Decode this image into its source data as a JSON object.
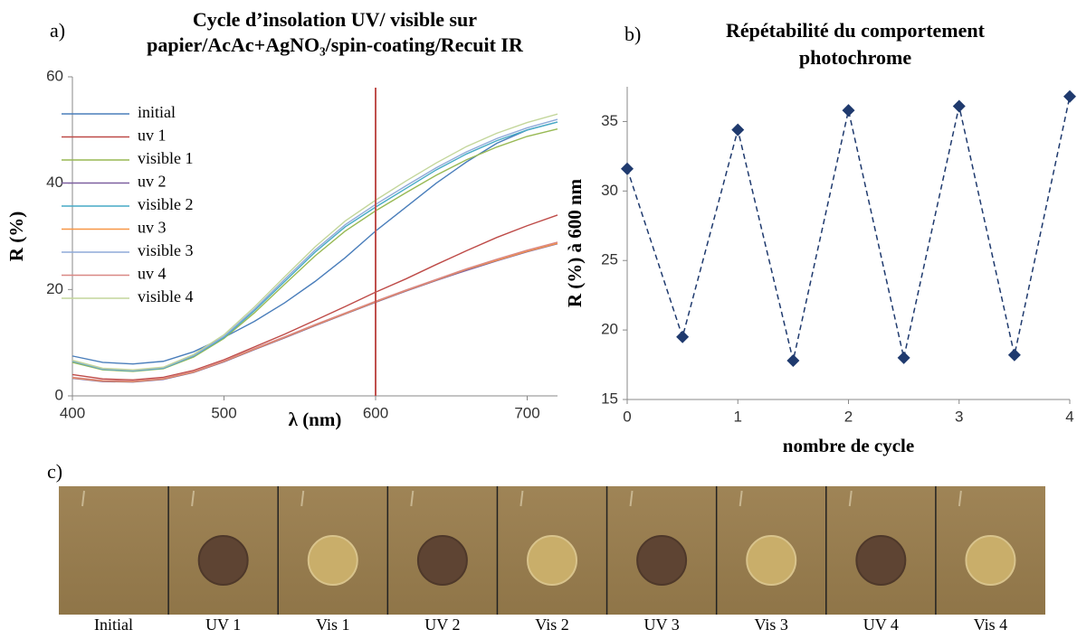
{
  "panel_labels": [
    "a)",
    "b)",
    "c)"
  ],
  "chart_data": [
    {
      "type": "line",
      "title": [
        "Cycle d’insolation UV/ visible sur",
        "papier/AcAc+AgNO₃/spin-coating/Recuit IR"
      ],
      "x_label": "λ (nm)",
      "y_label": "R (%)",
      "x": [
        400,
        420,
        440,
        460,
        480,
        500,
        520,
        540,
        560,
        580,
        600,
        620,
        640,
        660,
        680,
        700,
        720
      ],
      "series": [
        {
          "name": "initial",
          "color": "#4a7ebb",
          "values": [
            7.5,
            6.3,
            6.0,
            6.5,
            8.3,
            11,
            14,
            17.5,
            21.5,
            26,
            31,
            35.5,
            40,
            44,
            47.5,
            50,
            51.5
          ]
        },
        {
          "name": "uv 1",
          "color": "#be4b48",
          "values": [
            4,
            3.2,
            3.0,
            3.5,
            4.8,
            6.8,
            9.2,
            11.6,
            14.2,
            16.8,
            19.5,
            22,
            24.7,
            27.3,
            29.8,
            32,
            34
          ]
        },
        {
          "name": "visible 1",
          "color": "#98b954",
          "values": [
            6.3,
            4.9,
            4.6,
            5.1,
            7.3,
            10.8,
            15.6,
            21,
            26.3,
            31,
            34.8,
            38.2,
            41.5,
            44.4,
            46.8,
            48.8,
            50.2
          ]
        },
        {
          "name": "uv 2",
          "color": "#7d60a0",
          "values": [
            3.3,
            2.7,
            2.6,
            3.1,
            4.4,
            6.4,
            8.7,
            10.9,
            13.2,
            15.4,
            17.6,
            19.7,
            21.7,
            23.6,
            25.4,
            27.1,
            28.6
          ]
        },
        {
          "name": "visible 2",
          "color": "#46aac5",
          "values": [
            6.5,
            5.0,
            4.7,
            5.2,
            7.5,
            11,
            16,
            21.5,
            27,
            31.8,
            35.5,
            39,
            42.5,
            45.5,
            48,
            50,
            51.5
          ]
        },
        {
          "name": "uv 3",
          "color": "#f79646",
          "values": [
            3.4,
            2.8,
            2.7,
            3.2,
            4.5,
            6.5,
            8.8,
            11,
            13.3,
            15.5,
            17.7,
            19.8,
            21.8,
            23.8,
            25.5,
            27.2,
            28.7
          ]
        },
        {
          "name": "visible 3",
          "color": "#8faad8",
          "values": [
            6.6,
            5.1,
            4.8,
            5.3,
            7.6,
            11.2,
            16.3,
            21.9,
            27.4,
            32.2,
            36,
            39.5,
            42.9,
            45.9,
            48.4,
            50.4,
            52
          ]
        },
        {
          "name": "uv 4",
          "color": "#d98885",
          "values": [
            3.5,
            2.9,
            2.8,
            3.3,
            4.6,
            6.6,
            8.9,
            11.1,
            13.4,
            15.6,
            17.8,
            19.9,
            21.9,
            23.9,
            25.7,
            27.4,
            28.9
          ]
        },
        {
          "name": "visible 4",
          "color": "#c3d69b",
          "values": [
            6.7,
            5.2,
            4.9,
            5.4,
            7.8,
            11.5,
            16.7,
            22.4,
            28,
            32.9,
            36.8,
            40.4,
            43.8,
            46.9,
            49.4,
            51.4,
            53
          ]
        }
      ],
      "xlim": [
        400,
        720
      ],
      "xticks": [
        400,
        500,
        600,
        700
      ],
      "ylim": [
        0,
        60
      ],
      "yticks": [
        0,
        20,
        40,
        60
      ],
      "reference_x": 600,
      "reference_color": "#c0504d",
      "legend": "upper left"
    },
    {
      "type": "line",
      "title": [
        "Répétabilité du comportement",
        "photochrome"
      ],
      "x_label": "nombre de cycle",
      "y_label": "R (%) à 600 nm",
      "x": [
        0,
        0.5,
        1,
        1.5,
        2,
        2.5,
        3,
        3.5,
        4
      ],
      "series": [
        {
          "color": "#1f3a6e",
          "values": [
            31.6,
            19.5,
            34.4,
            17.8,
            35.8,
            18.0,
            36.1,
            18.2,
            36.8
          ]
        }
      ],
      "marker": "diamond",
      "dashed": true,
      "xlim": [
        0,
        4
      ],
      "xticks": [
        0,
        1,
        2,
        3,
        4
      ],
      "ylim": [
        15,
        37.5
      ],
      "yticks": [
        15,
        20,
        25,
        30,
        35
      ]
    }
  ],
  "photos": {
    "labels": [
      "Initial",
      "UV 1",
      "Vis 1",
      "UV 2",
      "Vis 2",
      "UV 3",
      "Vis 3",
      "UV 4",
      "Vis 4"
    ]
  }
}
